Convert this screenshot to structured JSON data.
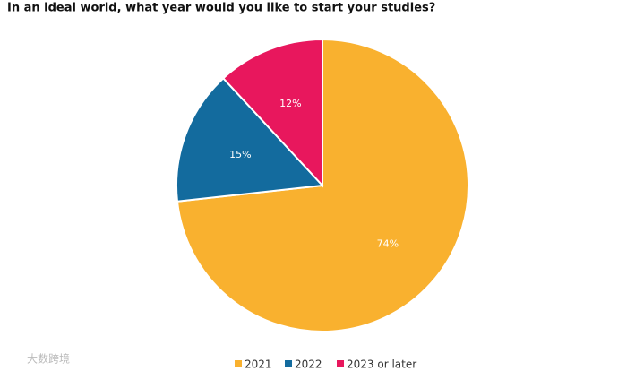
{
  "chart_data": {
    "type": "pie",
    "title": "In an ideal world, what year would you like to start your studies?",
    "categories": [
      "2021",
      "2022",
      "2023 or later"
    ],
    "values": [
      74,
      15,
      12
    ],
    "value_labels": [
      "74%",
      "15%",
      "12%"
    ],
    "colors": [
      "#f9b12f",
      "#136b9e",
      "#e8175d"
    ],
    "watermark": "大数跨境"
  }
}
